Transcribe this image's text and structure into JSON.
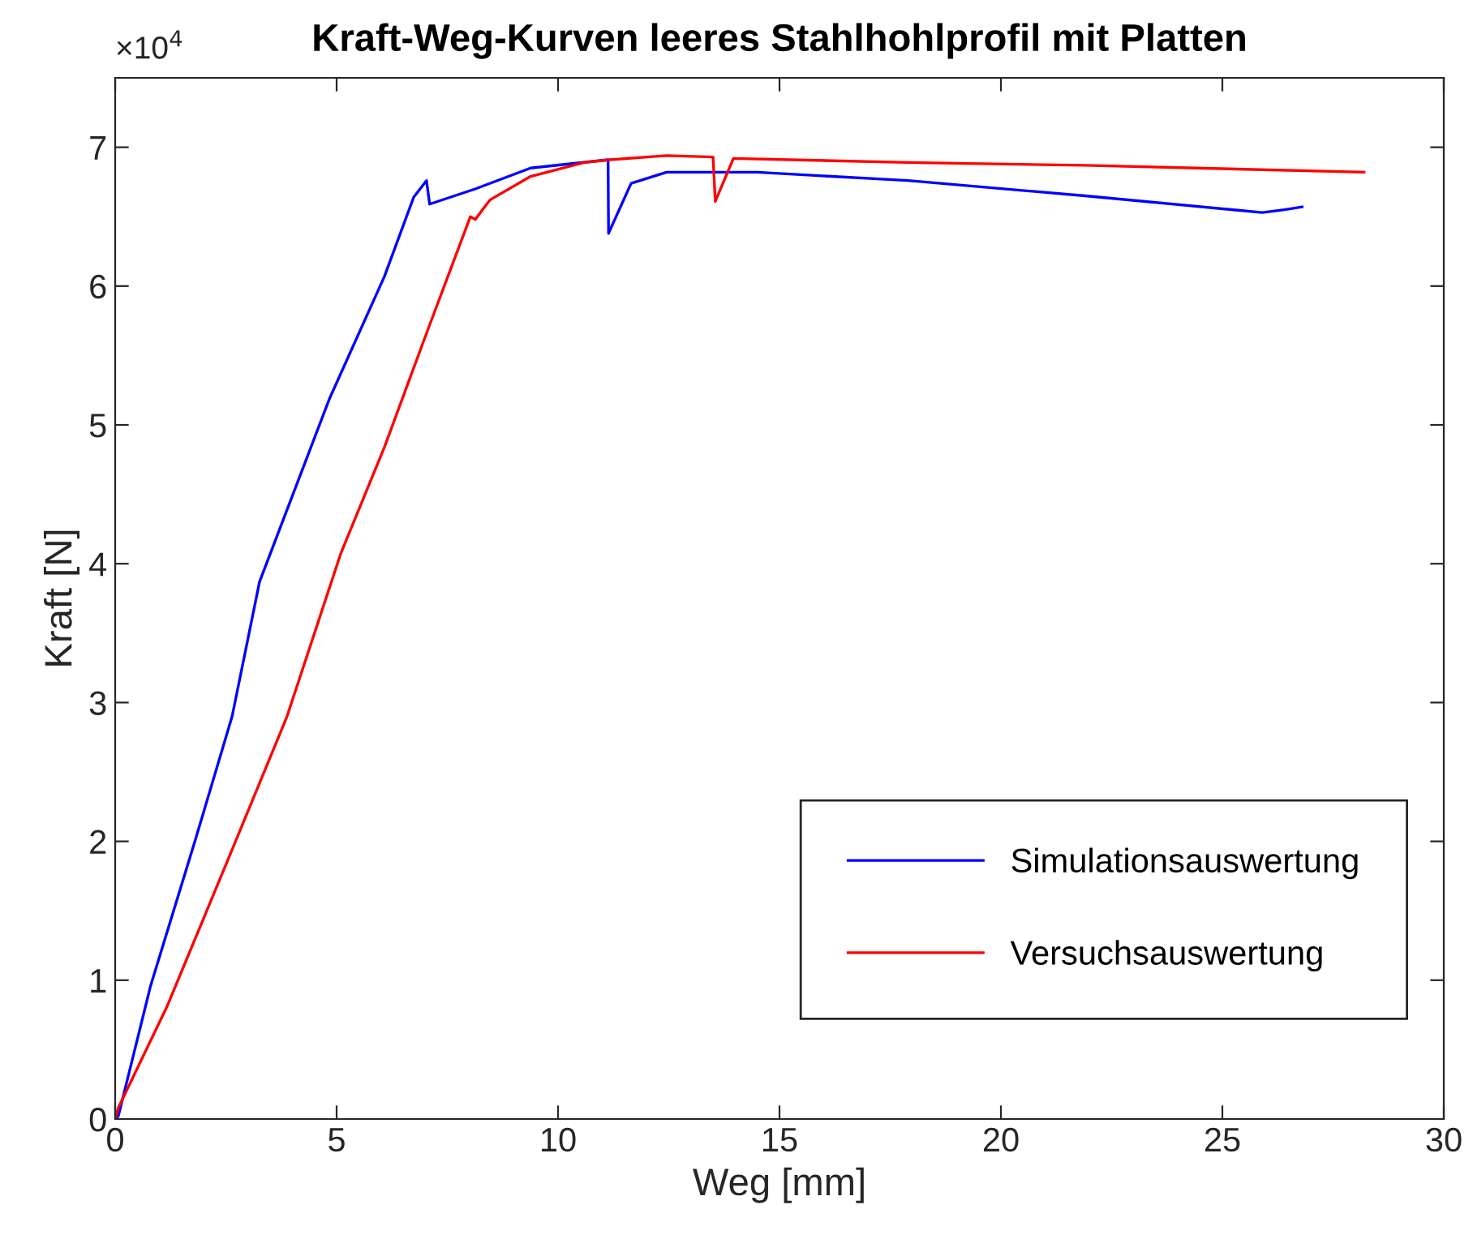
{
  "chart_data": {
    "type": "line",
    "title": "Kraft-Weg-Kurven leeres Stahlhohlprofil mit Platten",
    "xlabel": "Weg [mm]",
    "ylabel": "Kraft [N]",
    "annotations": [
      "×10$^{4}$"
    ],
    "series": [
      {
        "name": "Simulationsauswertung",
        "color": "#0000ff",
        "x": [
          0,
          0.07,
          0.8,
          1.8,
          2.64,
          3.26,
          3.5,
          4.84,
          6.08,
          6.74,
          7.03,
          7.1,
          8.13,
          9.38,
          11.13,
          11.14,
          11.65,
          12.45,
          14.5,
          17.9,
          21.9,
          25.9,
          26.4,
          26.8
        ],
        "values": [
          0,
          0.02,
          0.96,
          2.0,
          2.9,
          3.87,
          4.07,
          5.19,
          6.07,
          6.64,
          6.76,
          6.59,
          6.7,
          6.85,
          6.91,
          6.38,
          6.74,
          6.82,
          6.82,
          6.76,
          6.65,
          6.53,
          6.55,
          6.57
        ]
      },
      {
        "name": "Versuchsauswertung",
        "color": "#ff0000",
        "x": [
          0,
          0.07,
          1.17,
          2.64,
          3.88,
          5.09,
          6.08,
          7.03,
          8.02,
          8.13,
          8.46,
          9.38,
          10.59,
          11.17,
          12.45,
          13.5,
          13.55,
          13.96,
          17.9,
          21.9,
          28.2
        ],
        "values": [
          0,
          0.08,
          0.81,
          1.94,
          2.9,
          4.07,
          4.84,
          5.66,
          6.5,
          6.48,
          6.62,
          6.79,
          6.89,
          6.91,
          6.94,
          6.93,
          6.61,
          6.92,
          6.89,
          6.87,
          6.82
        ]
      }
    ],
    "xlim": [
      0,
      30
    ],
    "xticks": [
      0,
      5,
      10,
      15,
      20,
      25,
      30
    ],
    "ylim": [
      0,
      7.5
    ],
    "yticks": [
      0,
      1,
      2,
      3,
      4,
      5,
      6,
      7
    ],
    "grid": false,
    "legend": "bottom right"
  }
}
